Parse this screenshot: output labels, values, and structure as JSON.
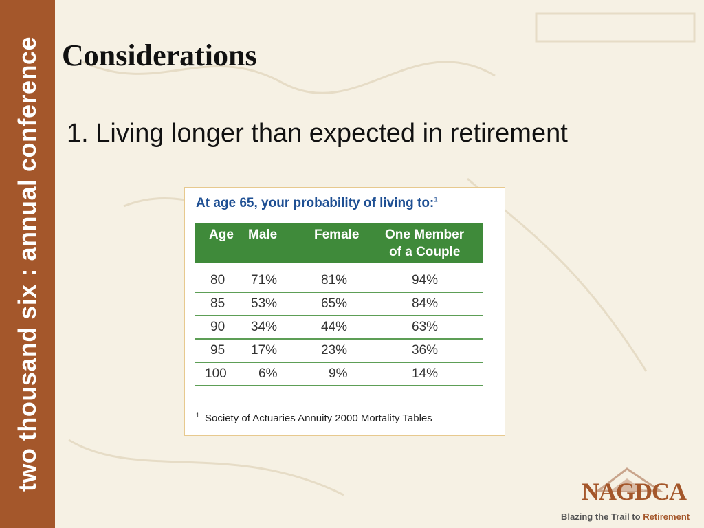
{
  "sidebar": {
    "text": "two thousand six : annual conference"
  },
  "slide": {
    "title": "Considerations",
    "point": "1. Living longer than expected in retirement"
  },
  "table": {
    "heading": "At age 65, your probability of living to:",
    "heading_note": "1",
    "headers": {
      "age": "Age",
      "male": "Male",
      "female": "Female",
      "couple_line1": "One Member",
      "couple_line2": "of a Couple"
    },
    "rows": [
      {
        "age": "80",
        "male": "71%",
        "female": "81%",
        "couple": "94%"
      },
      {
        "age": "85",
        "male": "53%",
        "female": "65%",
        "couple": "84%"
      },
      {
        "age": "90",
        "male": "34%",
        "female": "44%",
        "couple": "63%"
      },
      {
        "age": "95",
        "male": "17%",
        "female": "23%",
        "couple": "36%"
      },
      {
        "age": "100",
        "male": "6%",
        "female": "9%",
        "couple": "14%"
      }
    ],
    "footnote_mark": "1",
    "footnote": "Society of Actuaries Annuity 2000 Mortality Tables"
  },
  "logo": {
    "name": "NAGDCA",
    "tagline_part1": "Blazing the Trail to ",
    "tagline_part2": "Retirement"
  },
  "colors": {
    "sidebar": "#a4572b",
    "table_header": "#3f8a3a",
    "heading": "#1e4f93"
  }
}
